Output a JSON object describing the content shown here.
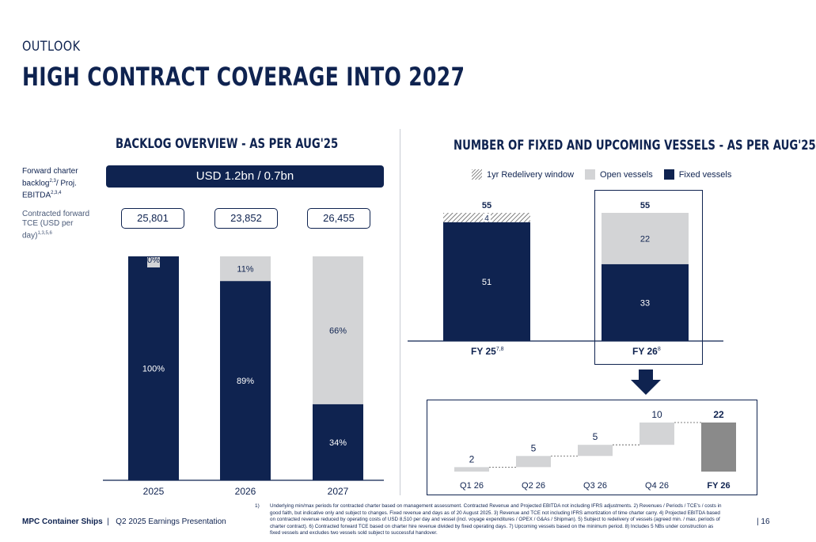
{
  "header": {
    "section": "OUTLOOK",
    "title": "HIGH CONTRACT COVERAGE INTO 2027"
  },
  "left_panel": {
    "title": "BACKLOG OVERVIEW - AS PER AUG'25",
    "row1_label": "Forward charter backlog",
    "row1_sup": "2,3",
    "row1_label_b": "/ Proj. EBITDA",
    "row1_sup_b": "2,3,4",
    "banner": "USD 1.2bn / 0.7bn",
    "row2_label": "Contracted forward TCE (USD per day)",
    "row2_sup": "1,3,5,6",
    "tce_values": [
      "25,801",
      "23,852",
      "26,455"
    ]
  },
  "right_panel": {
    "title": "NUMBER OF FIXED AND UPCOMING VESSELS - AS PER AUG'25",
    "legend": {
      "redelivery": "1yr Redelivery window",
      "open": "Open vessels",
      "fixed": "Fixed vessels"
    },
    "fy25_label": "FY 25",
    "fy25_sup": "7,8",
    "fy26_label": "FY 26",
    "fy26_sup": "8"
  },
  "colors": {
    "navy": "#0f2350",
    "light_grey": "#d3d4d6",
    "dark_grey": "#8a8a8a"
  },
  "chart_data": [
    {
      "type": "bar",
      "stacked": true,
      "categories": [
        "2025",
        "2026",
        "2027"
      ],
      "series": [
        {
          "values": [
            100,
            89,
            34
          ],
          "labels": [
            "100%",
            "89%",
            "34%"
          ],
          "color": "#0f2350"
        },
        {
          "values": [
            0,
            11,
            66
          ],
          "labels": [
            "0%",
            "11%",
            "66%"
          ],
          "color": "#d3d4d6"
        }
      ],
      "ylim": [
        0,
        100
      ]
    },
    {
      "type": "bar",
      "stacked": true,
      "categories": [
        "FY 25",
        "FY 26"
      ],
      "totals": [
        "55",
        "55"
      ],
      "series": [
        {
          "name": "Fixed vessels",
          "values": [
            51,
            33
          ],
          "labels": [
            "51",
            "33"
          ],
          "color": "#0f2350"
        },
        {
          "name": "Open vessels",
          "values": [
            0,
            22
          ],
          "labels": [
            "",
            "22"
          ],
          "color": "#d3d4d6"
        },
        {
          "name": "1yr Redelivery window",
          "values": [
            4,
            0
          ],
          "labels": [
            "4",
            ""
          ],
          "color": "hatched"
        }
      ],
      "ylim": [
        0,
        60
      ]
    },
    {
      "type": "bar",
      "subtype": "waterfall",
      "categories": [
        "Q1 26",
        "Q2 26",
        "Q3 26",
        "Q4 26",
        "FY 26"
      ],
      "values": [
        2,
        5,
        5,
        10,
        22
      ],
      "labels": [
        "2",
        "5",
        "5",
        "10",
        "22"
      ],
      "total_index": 4
    }
  ],
  "footer": {
    "company": "MPC Container Ships",
    "separator": "|",
    "presentation": "Q2 2025 Earnings Presentation",
    "page": "| 16",
    "footnote_num": "1)",
    "footnote": "Underlying min/max periods for contracted charter based on management assessment. Contracted Revenue and Projected EBITDA not including IFRS adjustments. 2) Revenues / Periods / TCE's / costs in good faith, but indicative only and subject to changes. Fixed revenue and days as of 20 August 2025. 3) Revenue and TCE not including IFRS amortization of time charter carry. 4) Projected EBITDA based on contracted revenue reduced by operating costs of USD 8,510 per day and vessel (incl. voyage expenditures / OPEX / G&As / Shipman). 5) Subject to redelivery of vessels (agreed min. / max. periods of charter contract). 6) Contracted forward TCE based on charter hire revenue divided by fixed operating days. 7) Upcoming vessels based on the minimum period. 8) Includes 5 NBs under construction as fixed vessels and excludes two vessels sold subject to successful handover."
  }
}
